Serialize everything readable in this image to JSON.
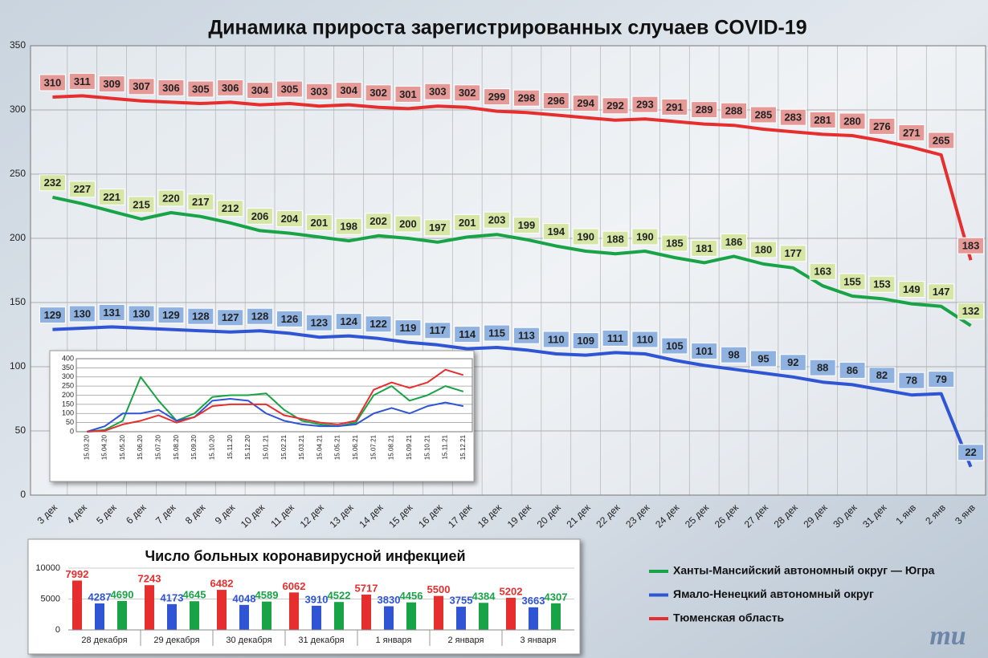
{
  "chart_data": [
    {
      "type": "line",
      "title": "Динамика прироста зарегистрированных случаев COVID-19",
      "categories": [
        "3 дек",
        "4 дек",
        "5 дек",
        "6 дек",
        "7 дек",
        "8 дек",
        "9 дек",
        "10 дек",
        "11 дек",
        "12 дек",
        "13 дек",
        "14 дек",
        "15 дек",
        "16 дек",
        "17 дек",
        "18 дек",
        "19 дек",
        "20 дек",
        "21 дек",
        "22 дек",
        "23 дек",
        "24 дек",
        "25 дек",
        "26 дек",
        "27 дек",
        "28 дек",
        "29 дек",
        "30 дек",
        "31 дек",
        "1 янв",
        "2 янв",
        "3 янв"
      ],
      "series": [
        {
          "name": "Ханты-Мансийский автономный округ — Югра",
          "color": "#18a346",
          "label_color": "#d5e6a5",
          "values": [
            232,
            227,
            221,
            215,
            220,
            217,
            212,
            206,
            204,
            201,
            198,
            202,
            200,
            197,
            201,
            203,
            199,
            194,
            190,
            188,
            190,
            185,
            181,
            186,
            180,
            177,
            163,
            155,
            153,
            149,
            147,
            132
          ]
        },
        {
          "name": "Ямало-Ненецкий автономный округ",
          "color": "#2f55d4",
          "label_color": "#8fb2e0",
          "values": [
            129,
            130,
            131,
            130,
            129,
            128,
            127,
            128,
            126,
            123,
            124,
            122,
            119,
            117,
            114,
            115,
            113,
            110,
            109,
            111,
            110,
            105,
            101,
            98,
            95,
            92,
            88,
            86,
            82,
            78,
            79,
            22
          ]
        },
        {
          "name": "Тюменская область",
          "color": "#e62e2e",
          "label_color": "#e59a98",
          "values": [
            310,
            311,
            309,
            307,
            306,
            305,
            306,
            304,
            305,
            303,
            304,
            302,
            301,
            303,
            302,
            299,
            298,
            296,
            294,
            292,
            293,
            291,
            289,
            288,
            285,
            283,
            281,
            280,
            276,
            271,
            265,
            183
          ]
        }
      ],
      "ylim": [
        0,
        350
      ],
      "yticks": [
        0,
        50,
        100,
        150,
        200,
        250,
        300,
        350
      ],
      "grid": true
    },
    {
      "type": "line",
      "categories": [
        "15.03.20",
        "15.04.20",
        "15.05.20",
        "15.06.20",
        "15.07.20",
        "15.08.20",
        "15.09.20",
        "15.10.20",
        "15.11.20",
        "15.12.20",
        "15.01.21",
        "15.02.21",
        "15.03.21",
        "15.04.21",
        "15.05.21",
        "15.06.21",
        "15.07.21",
        "15.08.21",
        "15.09.21",
        "15.10.21",
        "15.11.21",
        "15.12.21"
      ],
      "series": [
        {
          "color": "#18a346",
          "values": [
            0,
            10,
            60,
            300,
            170,
            60,
            100,
            190,
            200,
            200,
            210,
            120,
            60,
            40,
            30,
            50,
            200,
            250,
            170,
            200,
            250,
            220
          ]
        },
        {
          "color": "#2f55d4",
          "values": [
            0,
            30,
            100,
            100,
            120,
            60,
            80,
            170,
            180,
            170,
            100,
            60,
            40,
            30,
            30,
            40,
            100,
            130,
            100,
            140,
            160,
            140
          ]
        },
        {
          "color": "#e62e2e",
          "values": [
            0,
            5,
            40,
            60,
            90,
            50,
            80,
            140,
            150,
            150,
            150,
            90,
            70,
            50,
            40,
            60,
            230,
            270,
            240,
            270,
            340,
            310
          ]
        }
      ],
      "ylim": [
        0,
        400
      ],
      "yticks": [
        0,
        50,
        100,
        150,
        200,
        250,
        300,
        350,
        400
      ],
      "grid": true
    },
    {
      "type": "bar",
      "title": "Число больных коронавирусной инфекцией",
      "categories": [
        "28 декабря",
        "29 декабря",
        "30 декабря",
        "31 декабря",
        "1 января",
        "2 января",
        "3 января"
      ],
      "series": [
        {
          "color": "#e62e2e",
          "values": [
            7992,
            7243,
            6482,
            6062,
            5717,
            5500,
            5202
          ]
        },
        {
          "color": "#2f55d4",
          "values": [
            4287,
            4173,
            4048,
            3910,
            3830,
            3755,
            3663
          ]
        },
        {
          "color": "#18a346",
          "values": [
            4690,
            4645,
            4589,
            4522,
            4456,
            4384,
            4307
          ]
        }
      ],
      "ylim": [
        0,
        10000
      ],
      "yticks": [
        0,
        5000,
        10000
      ],
      "grid": true
    }
  ],
  "logo": "mu"
}
